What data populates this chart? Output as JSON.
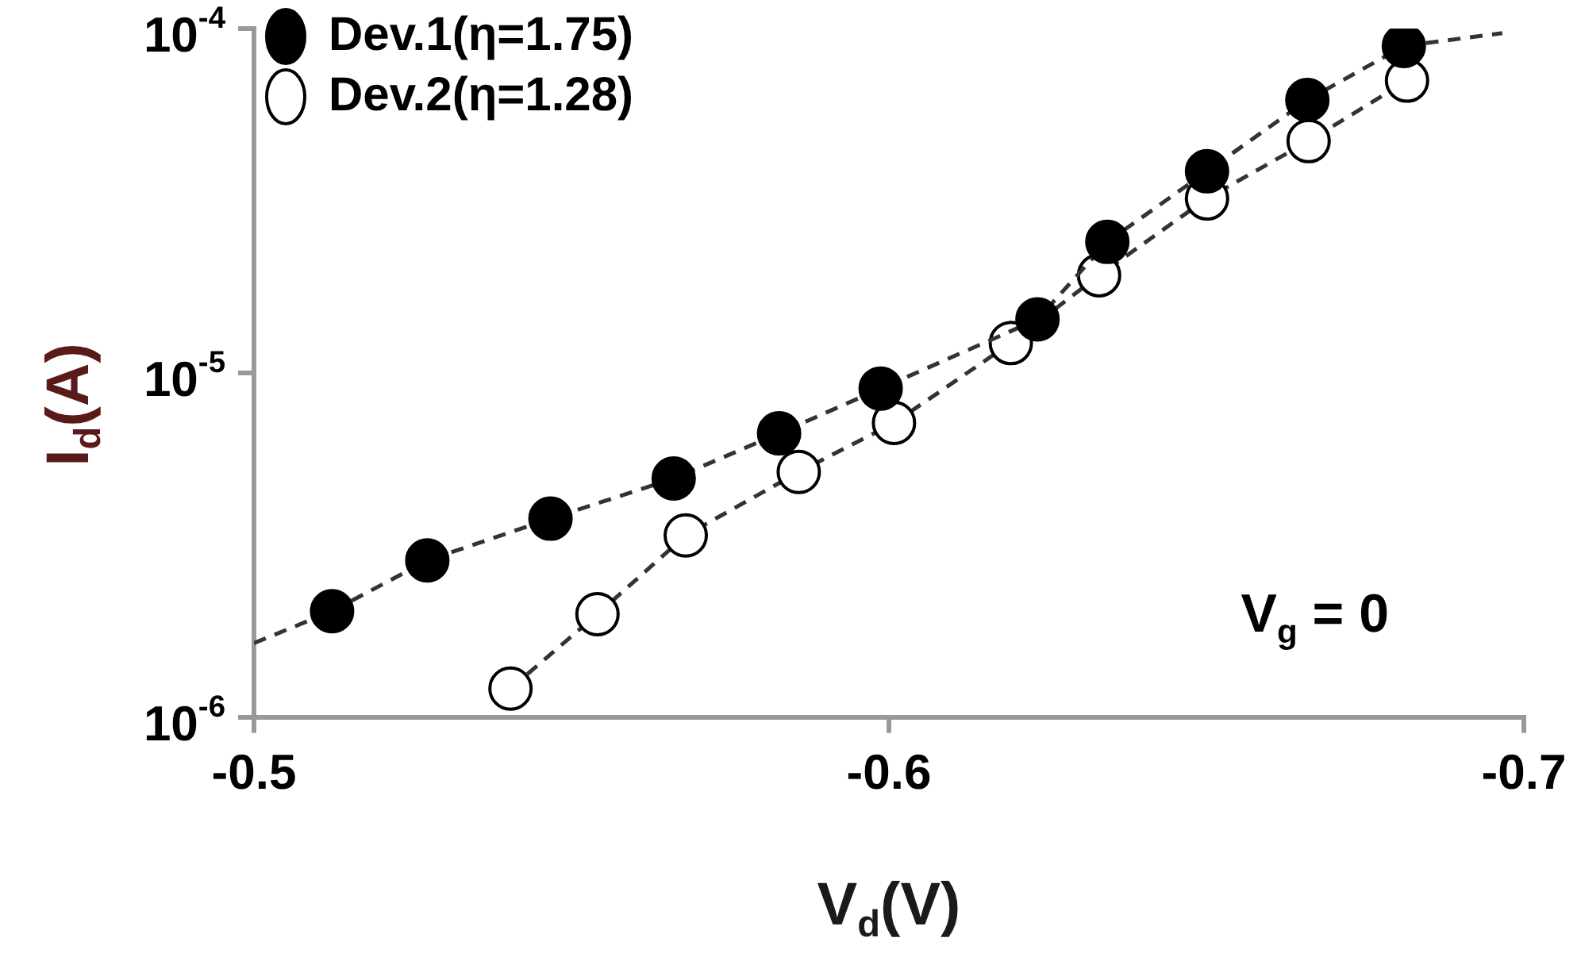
{
  "chart_data": {
    "type": "line",
    "xlabel": "V$_{d}$(V)",
    "ylabel": "I$_{d}$(A)",
    "annotations": [
      "V$_{g}$ = 0"
    ],
    "xlim": [
      -0.5,
      -0.7
    ],
    "xticks": [
      -0.5,
      -0.6,
      -0.7
    ],
    "ylim": [
      1e-06,
      0.0001
    ],
    "yticks": [
      {
        "value": 1e-06,
        "label": "10$^{-6}$"
      },
      {
        "value": 1e-05,
        "label": "10$^{-5}$"
      },
      {
        "value": 0.0001,
        "label": "10$^{-4}$"
      }
    ],
    "log": "y",
    "grid": false,
    "legend": "top left",
    "marker": "circle",
    "line_style": "dashed",
    "series": [
      {
        "name": "Dev.1(η=1.75)",
        "color": "#000000",
        "x": [
          -0.5123,
          -0.5273,
          -0.5467,
          -0.5661,
          -0.5827,
          -0.5987,
          -0.6234,
          -0.6344,
          -0.6501,
          -0.6659,
          -0.6811
        ],
        "values": [
          2.03e-06,
          2.85e-06,
          3.77e-06,
          4.93e-06,
          6.67e-06,
          9e-06,
          1.43e-05,
          2.4e-05,
          3.85e-05,
          6.2e-05,
          8.9e-05
        ]
      },
      {
        "name": "Dev.2(η=1.28)",
        "color": "#ffffff",
        "x": [
          -0.5404,
          -0.5541,
          -0.568,
          -0.5858,
          -0.6008,
          -0.6192,
          -0.6331,
          -0.6501,
          -0.6661,
          -0.6816
        ],
        "values": [
          1.21e-06,
          1.99e-06,
          3.37e-06,
          5.15e-06,
          7.15e-06,
          1.22e-05,
          1.92e-05,
          3.21e-05,
          4.71e-05,
          7.06e-05
        ]
      },
      {
        "type": "line",
        "color": "#333333",
        "marker": "none",
        "x": [
          -0.5,
          -0.5123,
          -0.6,
          -0.6811,
          -0.6966
        ],
        "values": [
          1.64e-06,
          2.03e-06,
          null,
          8.9e-05,
          9.7e-05
        ]
      }
    ]
  }
}
